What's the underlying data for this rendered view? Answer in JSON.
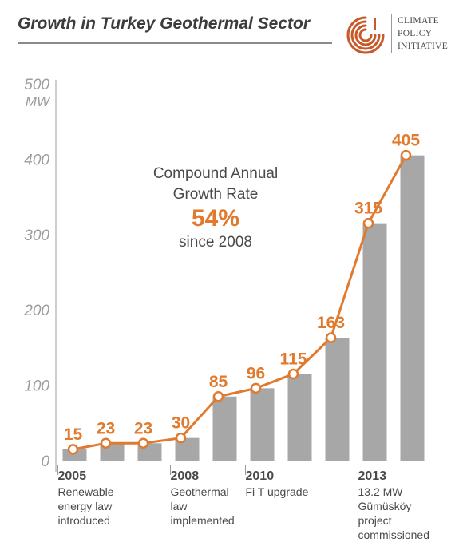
{
  "header": {
    "title": "Growth in Turkey Geothermal Sector",
    "logo_lines": [
      "CLIMATE",
      "POLICY",
      "INITIATIVE"
    ]
  },
  "callout": {
    "line1": "Compound Annual",
    "line2": "Growth Rate",
    "rate": "54%",
    "line3": "since 2008"
  },
  "colors": {
    "bar": "#a7a7a7",
    "line": "#e07a2e",
    "axis": "#9c9c9c"
  },
  "chart_data": {
    "type": "bar",
    "unit_label": "MW",
    "ylim": [
      0,
      500
    ],
    "yticks": [
      0,
      100,
      200,
      300,
      400,
      500
    ],
    "values": [
      15,
      23,
      23,
      30,
      85,
      96,
      115,
      163,
      315,
      405
    ],
    "bar_values": [
      15,
      23,
      23,
      30,
      85,
      96,
      115,
      163,
      315,
      405
    ],
    "overlay": "line",
    "annotations": [
      {
        "index": 0,
        "year": "2005",
        "note": [
          "Renewable",
          "energy law",
          "introduced"
        ]
      },
      {
        "index": 3,
        "year": "2008",
        "note": [
          "Geothermal",
          "law",
          "implemented"
        ]
      },
      {
        "index": 5,
        "year": "2010",
        "note": [
          "Fi T upgrade"
        ]
      },
      {
        "index": 8,
        "year": "2013",
        "note": [
          "13.2 MW",
          "Gümüsköy",
          "project",
          "commissioned"
        ]
      }
    ]
  }
}
